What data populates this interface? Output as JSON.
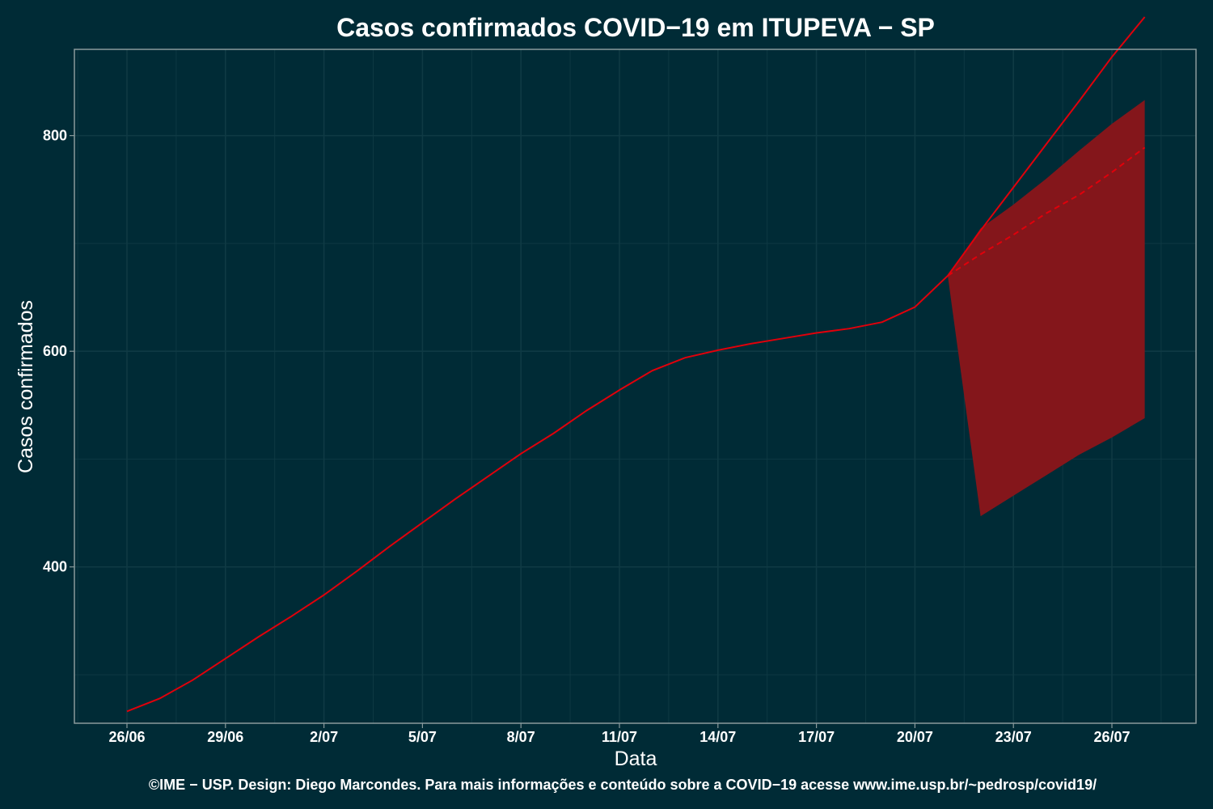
{
  "chart_data": {
    "type": "line",
    "title": "Casos confirmados COVID−19 em ITUPEVA − SP",
    "xlabel": "Data",
    "ylabel": "Casos confirmados",
    "caption": "©IME − USP. Design: Diego Marcondes. Para mais informações e conteúdo sobre a COVID−19 acesse www.ime.usp.br/~pedrosp/covid19/",
    "x_tick_labels": [
      "26/06",
      "29/06",
      "2/07",
      "5/07",
      "8/07",
      "11/07",
      "14/07",
      "17/07",
      "20/07",
      "23/07",
      "26/07"
    ],
    "y_ticks": [
      400,
      600,
      800
    ],
    "ylim": [
      255,
      880
    ],
    "grid": true,
    "colors": {
      "background": "#002b36",
      "line": "#e0000b",
      "band": "#84161b",
      "frame": "#8a9a9c",
      "grid": "#0f3a44"
    },
    "series": [
      {
        "style": "solid",
        "x": [
          "26/06",
          "27/06",
          "28/06",
          "29/06",
          "30/06",
          "1/07",
          "2/07",
          "3/07",
          "4/07",
          "5/07",
          "6/07",
          "7/07",
          "8/07",
          "9/07",
          "10/07",
          "11/07",
          "12/07",
          "13/07",
          "14/07",
          "15/07",
          "16/07",
          "17/07",
          "18/07",
          "19/07",
          "20/07",
          "21/07",
          "22/07",
          "23/07",
          "24/07",
          "25/07",
          "26/07",
          "27/07"
        ],
        "values": [
          266,
          278,
          295,
          315,
          335,
          354,
          374,
          396,
          419,
          441,
          463,
          484,
          505,
          524,
          545,
          564,
          582,
          594,
          601,
          607,
          612,
          617,
          621,
          627,
          641,
          670,
          712,
          752,
          792,
          832,
          873,
          910
        ]
      },
      {
        "style": "dashed",
        "x": [
          "21/07",
          "22/07",
          "23/07",
          "24/07",
          "25/07",
          "26/07",
          "27/07"
        ],
        "values": [
          670,
          690,
          708,
          728,
          745,
          766,
          789
        ]
      }
    ],
    "band": {
      "x": [
        "21/07",
        "22/07",
        "23/07",
        "24/07",
        "25/07",
        "26/07",
        "27/07"
      ],
      "lower": [
        670,
        447,
        466,
        485,
        504,
        520,
        538
      ],
      "upper": [
        670,
        714,
        736,
        760,
        786,
        811,
        833
      ]
    }
  }
}
